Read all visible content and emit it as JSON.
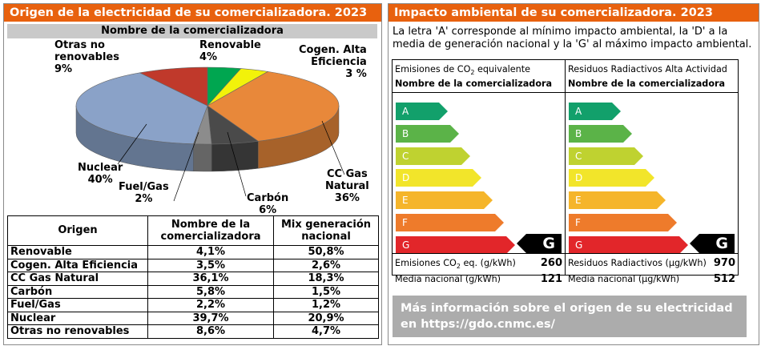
{
  "left": {
    "title": "Origen de la electricidad de su comercializadora. 2023",
    "pie_header": "Nombre de la comercializadora",
    "pie_labels": [
      "Renovable\n4%",
      "Cogen. Alta\nEficiencia\n3 %",
      "CC Gas\nNatural\n36%",
      "Carbón\n6%",
      "Fuel/Gas\n2%",
      "Nuclear\n40%",
      "Otras no\nrenovables\n9%"
    ],
    "table": {
      "headers": [
        "Origen",
        "Nombre de la\ncomercializadora",
        "Mix generación\nnacional"
      ],
      "rows": [
        [
          "Renovable",
          "4,1%",
          "50,8%"
        ],
        [
          "Cogen. Alta Eficiencia",
          "3,5%",
          "2,6%"
        ],
        [
          "CC Gas Natural",
          "36,1%",
          "18,3%"
        ],
        [
          "Carbón",
          "5,8%",
          "1,5%"
        ],
        [
          "Fuel/Gas",
          "2,2%",
          "1,2%"
        ],
        [
          "Nuclear",
          "39,7%",
          "20,9%"
        ],
        [
          "Otras no renovables",
          "8,6%",
          "4,7%"
        ]
      ]
    }
  },
  "chart_data": {
    "type": "pie",
    "title": "Nombre de la comercializadora",
    "categories": [
      "Renovable",
      "Cogen. Alta Eficiencia",
      "CC Gas Natural",
      "Carbón",
      "Fuel/Gas",
      "Nuclear",
      "Otras no renovables"
    ],
    "values": [
      4.1,
      3.5,
      36.1,
      5.8,
      2.2,
      39.7,
      8.6
    ],
    "colors": [
      "#00a650",
      "#f2f20a",
      "#e8883a",
      "#4a4a4a",
      "#8c8c8c",
      "#8aa2c8",
      "#c0392b"
    ]
  },
  "right": {
    "title": "Impacto ambiental de su comercializadora. 2023",
    "intro": "La letra 'A' corresponde al mínimo impacto ambiental, la 'D' a la media de generación nacional y la 'G' al máximo impacto ambiental.",
    "letters": [
      "A",
      "B",
      "C",
      "D",
      "E",
      "F",
      "G"
    ],
    "bar_colors": [
      "#12a06b",
      "#5bb348",
      "#bfd230",
      "#f2e52a",
      "#f5b52a",
      "#ee7b2b",
      "#e2262a"
    ],
    "co2": {
      "title_pre": "Emisiones de CO",
      "title_sub": "2",
      "title_post": " equivalente",
      "subtitle": "Nombre de la comercializadora",
      "rating": "G",
      "row1_pre": "Emisiones CO",
      "row1_sub": "2",
      "row1_post": " eq. (g/kWh)",
      "row1_value": "260",
      "row2_label": "Media nacional (g/kWh)",
      "row2_value": "121"
    },
    "rad": {
      "title": "Residuos Radiactivos Alta Actividad",
      "subtitle": "Nombre de la comercializadora",
      "rating": "G",
      "row1_label": "Residuos Radiactivos (µg/kWh)",
      "row1_value": "970",
      "row2_label": "Media nacional (µg/kWh)",
      "row2_value": "512"
    },
    "more_info": "Más información sobre el origen de su electricidad en https://gdo.cnmc.es/"
  }
}
